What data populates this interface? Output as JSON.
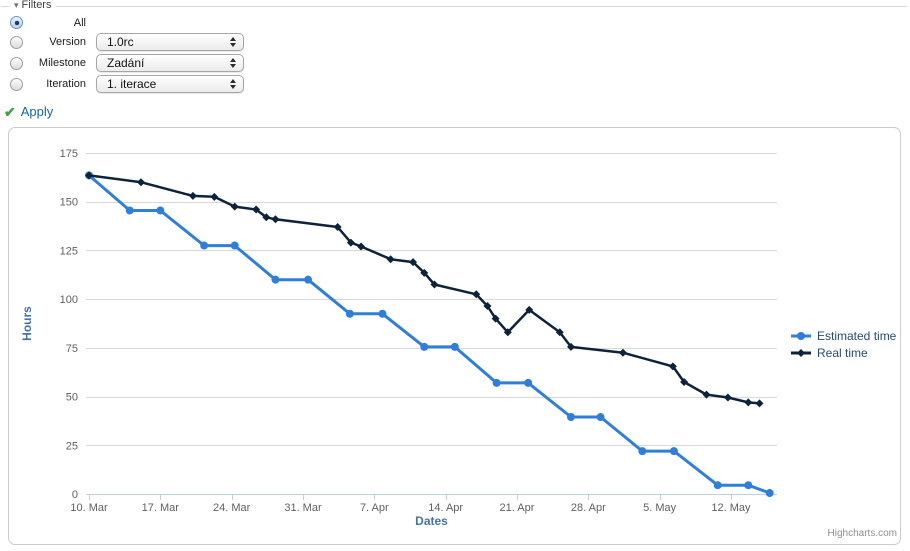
{
  "filters": {
    "title": "Filters",
    "apply_label": "Apply",
    "rows": [
      {
        "label": "All",
        "selected": true
      },
      {
        "label": "Version",
        "value": "1.0rc"
      },
      {
        "label": "Milestone",
        "value": "Zadání"
      },
      {
        "label": "Iteration",
        "value": "1. iterace"
      }
    ]
  },
  "chart_data": {
    "type": "line",
    "title": "",
    "xlabel": "Dates",
    "ylabel": "Hours",
    "ylim": [
      0,
      175
    ],
    "yticks": [
      0,
      25,
      50,
      75,
      100,
      125,
      150,
      175
    ],
    "xlim": [
      -0.5,
      67.5
    ],
    "x_unit": "days from 10 March",
    "x_ticks": [
      {
        "x": 0,
        "label": "10. Mar"
      },
      {
        "x": 7,
        "label": "17. Mar"
      },
      {
        "x": 14,
        "label": "24. Mar"
      },
      {
        "x": 21,
        "label": "31. Mar"
      },
      {
        "x": 28,
        "label": "7. Apr"
      },
      {
        "x": 35,
        "label": "14. Apr"
      },
      {
        "x": 42,
        "label": "21. Apr"
      },
      {
        "x": 49,
        "label": "28. Apr"
      },
      {
        "x": 56,
        "label": "5. May"
      },
      {
        "x": 63,
        "label": "12. May"
      }
    ],
    "grid": "horizontal",
    "legend_position": "right",
    "axis_title_color": "#4572a7",
    "series": [
      {
        "name": "Estimated time",
        "color": "#2f7ed8",
        "marker": "circle",
        "points": [
          [
            0,
            163.5
          ],
          [
            4,
            145.5
          ],
          [
            7,
            145.5
          ],
          [
            11.3,
            127.5
          ],
          [
            14.3,
            127.5
          ],
          [
            18.3,
            110
          ],
          [
            21.5,
            110
          ],
          [
            25.6,
            92.5
          ],
          [
            28.8,
            92.5
          ],
          [
            32.9,
            75.5
          ],
          [
            35.9,
            75.5
          ],
          [
            40,
            57
          ],
          [
            43.1,
            57
          ],
          [
            47.3,
            39.5
          ],
          [
            50.2,
            39.5
          ],
          [
            54.3,
            22
          ],
          [
            57.4,
            22
          ],
          [
            61.7,
            4.5
          ],
          [
            64.7,
            4.5
          ],
          [
            66.8,
            0.5
          ]
        ]
      },
      {
        "name": "Real time",
        "color": "#0d233a",
        "marker": "diamond",
        "points": [
          [
            0,
            163.5
          ],
          [
            5.1,
            160
          ],
          [
            10.2,
            153
          ],
          [
            12.3,
            152.5
          ],
          [
            14.3,
            147.5
          ],
          [
            16.4,
            146
          ],
          [
            17.4,
            142
          ],
          [
            18.3,
            141
          ],
          [
            24.4,
            137
          ],
          [
            25.7,
            129
          ],
          [
            26.7,
            127
          ],
          [
            29.6,
            120.5
          ],
          [
            31.8,
            119
          ],
          [
            32.9,
            113.5
          ],
          [
            33.9,
            107.5
          ],
          [
            38,
            102.5
          ],
          [
            39.1,
            96.5
          ],
          [
            39.9,
            90
          ],
          [
            41.1,
            83
          ],
          [
            43.2,
            94.5
          ],
          [
            46.2,
            83
          ],
          [
            47.3,
            75.5
          ],
          [
            52.4,
            72.5
          ],
          [
            57.3,
            65.5
          ],
          [
            58.4,
            57.5
          ],
          [
            60.6,
            51
          ],
          [
            62.7,
            49.5
          ],
          [
            64.7,
            47
          ],
          [
            65.8,
            46.5
          ]
        ]
      }
    ],
    "credits": "Highcharts.com"
  }
}
